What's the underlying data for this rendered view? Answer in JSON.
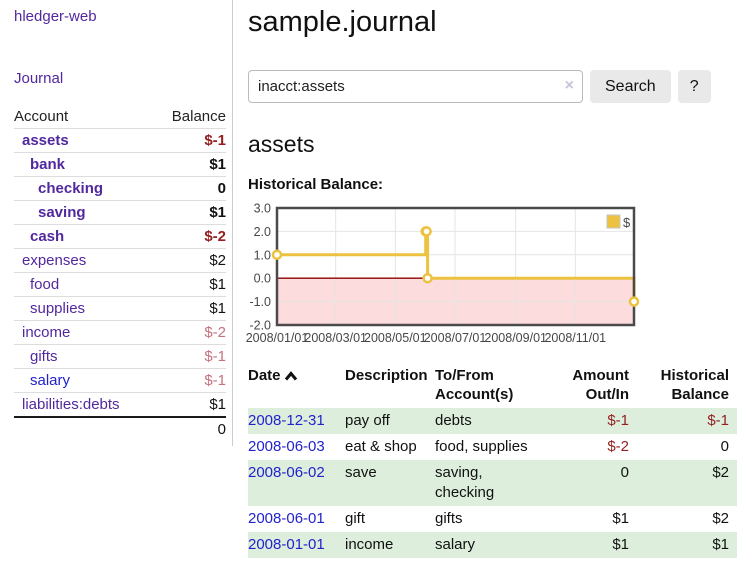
{
  "brand": "hledger-web",
  "nav": {
    "journal": "Journal"
  },
  "sidebar": {
    "columns": {
      "account": "Account",
      "balance": "Balance"
    },
    "accounts": [
      {
        "name": "assets",
        "indent": 1,
        "emphasis": true,
        "balance": "$-1"
      },
      {
        "name": "bank",
        "indent": 2,
        "emphasis": true,
        "balance": "$1"
      },
      {
        "name": "checking",
        "indent": 3,
        "emphasis": true,
        "balance": "0"
      },
      {
        "name": "saving",
        "indent": 3,
        "emphasis": true,
        "balance": "$1"
      },
      {
        "name": "cash",
        "indent": 2,
        "emphasis": true,
        "balance": "$-2"
      },
      {
        "name": "expenses",
        "indent": 1,
        "emphasis": false,
        "balance": "$2"
      },
      {
        "name": "food",
        "indent": 2,
        "emphasis": false,
        "balance": "$1"
      },
      {
        "name": "supplies",
        "indent": 2,
        "emphasis": false,
        "balance": "$1"
      },
      {
        "name": "income",
        "indent": 1,
        "emphasis": false,
        "balance": "$-2"
      },
      {
        "name": "gifts",
        "indent": 2,
        "emphasis": false,
        "balance": "$-1"
      },
      {
        "name": "salary",
        "indent": 2,
        "emphasis": false,
        "balance": "$-1",
        "link": "unvisited"
      },
      {
        "name": "liabilities:debts",
        "indent": 1,
        "emphasis": false,
        "balance": "$1"
      }
    ],
    "total": "0"
  },
  "header": {
    "title": "sample.journal"
  },
  "search": {
    "value": "inacct:assets",
    "clear_icon": "×",
    "button": "Search",
    "help_button": "?"
  },
  "account_page": {
    "heading": "assets",
    "chart_label": "Historical Balance:"
  },
  "chart_data": {
    "type": "line",
    "step": true,
    "title": "Historical Balance",
    "series": [
      {
        "name": "$",
        "color": "#edc240",
        "points": [
          [
            "2008-01-01",
            1
          ],
          [
            "2008-06-01",
            2
          ],
          [
            "2008-06-02",
            2
          ],
          [
            "2008-06-03",
            0
          ],
          [
            "2008-12-31",
            -1
          ]
        ]
      }
    ],
    "xlim": [
      "2008-01-01",
      "2008-12-31"
    ],
    "ylim": [
      -2,
      3
    ],
    "x_ticks": [
      "2008/01/01",
      "2008/03/01",
      "2008/05/01",
      "2008/07/01",
      "2008/09/01",
      "2008/11/01"
    ],
    "y_ticks": [
      3,
      2,
      1,
      0,
      -1,
      -2
    ],
    "grid": true,
    "legend_position": "top-right",
    "grid_color": "#e4e4e4",
    "border_color": "#4a4a4a",
    "zero_line_color": "#8b0000",
    "negative_region_fill": "#fcdcdc",
    "axis_text_color": "#474747"
  },
  "transactions": {
    "columns": [
      "Date",
      "Description",
      "To/From Account(s)",
      "Amount Out/In",
      "Historical Balance"
    ],
    "sort": {
      "column": "Date",
      "direction": "ascending"
    },
    "rows": [
      {
        "date": "2008-12-31",
        "description": "pay off",
        "accounts": "debts",
        "amount": "$-1",
        "balance": "$-1"
      },
      {
        "date": "2008-06-03",
        "description": "eat & shop",
        "accounts": "food, supplies",
        "amount": "$-2",
        "balance": "0"
      },
      {
        "date": "2008-06-02",
        "description": "save",
        "accounts": "saving, checking",
        "amount": "0",
        "balance": "$2"
      },
      {
        "date": "2008-06-01",
        "description": "gift",
        "accounts": "gifts",
        "amount": "$1",
        "balance": "$2"
      },
      {
        "date": "2008-01-01",
        "description": "income",
        "accounts": "salary",
        "amount": "$1",
        "balance": "$1"
      }
    ]
  }
}
